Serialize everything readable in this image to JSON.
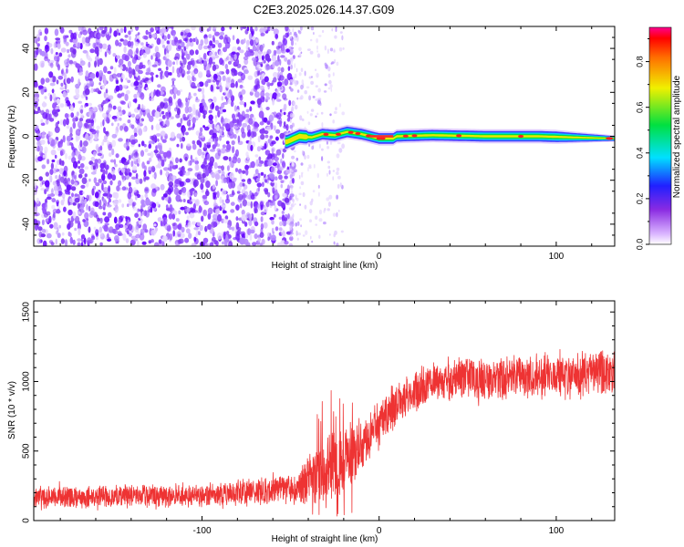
{
  "figure": {
    "title": "C2E3.2025.026.14.37.G09"
  },
  "chart_data": [
    {
      "type": "heatmap",
      "xlabel": "Height of straight line (km)",
      "ylabel": "Frequency (Hz)",
      "xlim": [
        -195,
        133
      ],
      "ylim": [
        -50,
        50
      ],
      "xticks": [
        -100,
        0,
        100
      ],
      "xtick_labels": [
        "-100",
        "0",
        "100"
      ],
      "yticks": [
        -40,
        -20,
        0,
        20,
        40
      ],
      "ytick_labels": [
        "-40",
        "-20",
        "0",
        "20",
        "40"
      ],
      "colorbar": {
        "label": "Normalized spectral amplitude",
        "range": [
          0,
          0.95
        ],
        "ticks": [
          0,
          0.2,
          0.4,
          0.6,
          0.8
        ],
        "tick_labels": [
          "0.0",
          "0.2",
          "0.4",
          "0.6",
          "0.8"
        ],
        "colormap": "rainbow (white-violet-blue-cyan-green-yellow-red-magenta)"
      },
      "grid": false,
      "description_values": {
        "noise_region_x": [
          -195,
          -50
        ],
        "sparse_region_x": [
          -50,
          -20
        ],
        "signal_track": [
          {
            "x": -52,
            "freq": -2.5
          },
          {
            "x": -45,
            "freq": 0
          },
          {
            "x": -38,
            "freq": -0.5
          },
          {
            "x": -32,
            "freq": 1
          },
          {
            "x": -25,
            "freq": 0.5
          },
          {
            "x": -18,
            "freq": 2
          },
          {
            "x": -10,
            "freq": 1
          },
          {
            "x": -5,
            "freq": 0
          },
          {
            "x": 0,
            "freq": -1
          },
          {
            "x": 8,
            "freq": -1
          },
          {
            "x": 10,
            "freq": 0
          },
          {
            "x": 30,
            "freq": 0.5
          },
          {
            "x": 60,
            "freq": 0
          },
          {
            "x": 90,
            "freq": 0
          },
          {
            "x": 110,
            "freq": -0.5
          },
          {
            "x": 133,
            "freq": -1
          }
        ]
      }
    },
    {
      "type": "line",
      "xlabel": "Height of straight line (km)",
      "ylabel": "SNR (10 * v/v)",
      "xlim": [
        -195,
        133
      ],
      "ylim": [
        0,
        1580
      ],
      "xticks": [
        -100,
        0,
        100
      ],
      "xtick_labels": [
        "-100",
        "0",
        "100"
      ],
      "yticks": [
        0,
        500,
        1000,
        1500
      ],
      "ytick_labels": [
        "0",
        "500",
        "1000",
        "1500"
      ],
      "grid": false,
      "series": [
        {
          "color": "#ee3333",
          "trend": {
            "x": [
              -195,
              -100,
              -45,
              -38,
              -30,
              -20,
              -10,
              0,
              10,
              20,
              30,
              50,
              80,
              100,
              133
            ],
            "mean": [
              170,
              180,
              230,
              320,
              350,
              420,
              550,
              700,
              830,
              930,
              1000,
              1020,
              1030,
              1040,
              1060
            ],
            "spread": [
              120,
              130,
              170,
              350,
              380,
              380,
              320,
              260,
              230,
              220,
              220,
              230,
              230,
              240,
              250
            ]
          }
        }
      ]
    }
  ]
}
